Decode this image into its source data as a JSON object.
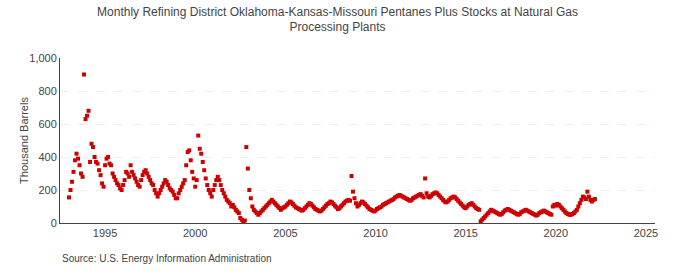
{
  "chart_data": {
    "type": "scatter",
    "title": "Monthly Refining District Oklahoma-Kansas-Missouri Pentanes Plus Stocks at Natural Gas\nProcessing Plants",
    "ylabel": "Thousand Barrels",
    "annotations": [
      "Source: U.S. Energy Information Administration"
    ],
    "color": "#cc0000",
    "marker": "square",
    "grid": true,
    "xlim": [
      1992.5,
      2025.5
    ],
    "ylim": [
      0,
      1000
    ],
    "xticks": [
      1995,
      2000,
      2005,
      2010,
      2015,
      2020,
      2025
    ],
    "yticks": [
      0,
      200,
      400,
      600,
      800,
      {
        "value": 1000,
        "label": "1,000"
      }
    ],
    "x": [
      1993.0,
      1993.083,
      1993.167,
      1993.25,
      1993.333,
      1993.417,
      1993.5,
      1993.583,
      1993.667,
      1993.75,
      1993.833,
      1993.917,
      1994.0,
      1994.083,
      1994.167,
      1994.25,
      1994.333,
      1994.417,
      1994.5,
      1994.583,
      1994.667,
      1994.75,
      1994.833,
      1994.917,
      1995.0,
      1995.083,
      1995.167,
      1995.25,
      1995.333,
      1995.417,
      1995.5,
      1995.583,
      1995.667,
      1995.75,
      1995.833,
      1995.917,
      1996.0,
      1996.083,
      1996.167,
      1996.25,
      1996.333,
      1996.417,
      1996.5,
      1996.583,
      1996.667,
      1996.75,
      1996.833,
      1996.917,
      1997.0,
      1997.083,
      1997.167,
      1997.25,
      1997.333,
      1997.417,
      1997.5,
      1997.583,
      1997.667,
      1997.75,
      1997.833,
      1997.917,
      1998.0,
      1998.083,
      1998.167,
      1998.25,
      1998.333,
      1998.417,
      1998.5,
      1998.583,
      1998.667,
      1998.75,
      1998.833,
      1998.917,
      1999.0,
      1999.083,
      1999.167,
      1999.25,
      1999.333,
      1999.417,
      1999.5,
      1999.583,
      1999.667,
      1999.75,
      1999.833,
      1999.917,
      2000.0,
      2000.083,
      2000.167,
      2000.25,
      2000.333,
      2000.417,
      2000.5,
      2000.583,
      2000.667,
      2000.75,
      2000.833,
      2000.917,
      2001.0,
      2001.083,
      2001.167,
      2001.25,
      2001.333,
      2001.417,
      2001.5,
      2001.583,
      2001.667,
      2001.75,
      2001.833,
      2001.917,
      2002.0,
      2002.083,
      2002.167,
      2002.25,
      2002.333,
      2002.417,
      2002.5,
      2002.583,
      2002.667,
      2002.75,
      2002.833,
      2002.917,
      2003.0,
      2003.083,
      2003.167,
      2003.25,
      2003.333,
      2003.417,
      2003.5,
      2003.583,
      2003.667,
      2003.75,
      2003.833,
      2003.917,
      2004.0,
      2004.083,
      2004.167,
      2004.25,
      2004.333,
      2004.417,
      2004.5,
      2004.583,
      2004.667,
      2004.75,
      2004.833,
      2004.917,
      2005.0,
      2005.083,
      2005.167,
      2005.25,
      2005.333,
      2005.417,
      2005.5,
      2005.583,
      2005.667,
      2005.75,
      2005.833,
      2005.917,
      2006.0,
      2006.083,
      2006.167,
      2006.25,
      2006.333,
      2006.417,
      2006.5,
      2006.583,
      2006.667,
      2006.75,
      2006.833,
      2006.917,
      2007.0,
      2007.083,
      2007.167,
      2007.25,
      2007.333,
      2007.417,
      2007.5,
      2007.583,
      2007.667,
      2007.75,
      2007.833,
      2007.917,
      2008.0,
      2008.083,
      2008.167,
      2008.25,
      2008.333,
      2008.417,
      2008.5,
      2008.583,
      2008.667,
      2008.75,
      2008.833,
      2008.917,
      2009.0,
      2009.083,
      2009.167,
      2009.25,
      2009.333,
      2009.417,
      2009.5,
      2009.583,
      2009.667,
      2009.75,
      2009.833,
      2009.917,
      2010.0,
      2010.083,
      2010.167,
      2010.25,
      2010.333,
      2010.417,
      2010.5,
      2010.583,
      2010.667,
      2010.75,
      2010.833,
      2010.917,
      2011.0,
      2011.083,
      2011.167,
      2011.25,
      2011.333,
      2011.417,
      2011.5,
      2011.583,
      2011.667,
      2011.75,
      2011.833,
      2011.917,
      2012.0,
      2012.083,
      2012.167,
      2012.25,
      2012.333,
      2012.417,
      2012.5,
      2012.583,
      2012.667,
      2012.75,
      2012.833,
      2012.917,
      2013.0,
      2013.083,
      2013.167,
      2013.25,
      2013.333,
      2013.417,
      2013.5,
      2013.583,
      2013.667,
      2013.75,
      2013.833,
      2013.917,
      2014.0,
      2014.083,
      2014.167,
      2014.25,
      2014.333,
      2014.417,
      2014.5,
      2014.583,
      2014.667,
      2014.75,
      2014.833,
      2014.917,
      2015.0,
      2015.083,
      2015.167,
      2015.25,
      2015.333,
      2015.417,
      2015.5,
      2015.583,
      2015.667,
      2015.75,
      2015.833,
      2015.917,
      2016.0,
      2016.083,
      2016.167,
      2016.25,
      2016.333,
      2016.417,
      2016.5,
      2016.583,
      2016.667,
      2016.75,
      2016.833,
      2016.917,
      2017.0,
      2017.083,
      2017.167,
      2017.25,
      2017.333,
      2017.417,
      2017.5,
      2017.583,
      2017.667,
      2017.75,
      2017.833,
      2017.917,
      2018.0,
      2018.083,
      2018.167,
      2018.25,
      2018.333,
      2018.417,
      2018.5,
      2018.583,
      2018.667,
      2018.75,
      2018.833,
      2018.917,
      2019.0,
      2019.083,
      2019.167,
      2019.25,
      2019.333,
      2019.417,
      2019.5,
      2019.583,
      2019.667,
      2019.75,
      2019.833,
      2019.917,
      2020.0,
      2020.083,
      2020.167,
      2020.25,
      2020.333,
      2020.417,
      2020.5,
      2020.583,
      2020.667,
      2020.75,
      2020.833,
      2020.917,
      2021.0,
      2021.083,
      2021.167,
      2021.25,
      2021.333,
      2021.417,
      2021.5,
      2021.583,
      2021.667,
      2021.75,
      2021.833,
      2021.917,
      2022.0,
      2022.083,
      2022.167
    ],
    "values": [
      155,
      200,
      250,
      310,
      380,
      420,
      390,
      350,
      300,
      280,
      900,
      630,
      650,
      680,
      370,
      480,
      460,
      400,
      370,
      360,
      320,
      290,
      240,
      220,
      350,
      390,
      400,
      360,
      350,
      300,
      280,
      260,
      240,
      230,
      210,
      200,
      230,
      260,
      310,
      300,
      280,
      350,
      310,
      290,
      270,
      250,
      230,
      220,
      260,
      290,
      310,
      320,
      300,
      280,
      260,
      240,
      230,
      200,
      180,
      160,
      180,
      200,
      220,
      240,
      260,
      250,
      230,
      210,
      200,
      190,
      170,
      150,
      150,
      180,
      200,
      220,
      240,
      260,
      350,
      430,
      440,
      380,
      310,
      270,
      220,
      260,
      530,
      450,
      420,
      370,
      320,
      270,
      230,
      200,
      180,
      160,
      200,
      230,
      260,
      280,
      260,
      230,
      200,
      180,
      160,
      140,
      130,
      120,
      100,
      110,
      95,
      80,
      70,
      60,
      30,
      20,
      10,
      15,
      460,
      330,
      200,
      150,
      100,
      80,
      70,
      60,
      50,
      60,
      70,
      80,
      90,
      100,
      110,
      120,
      130,
      140,
      130,
      120,
      110,
      100,
      90,
      80,
      90,
      95,
      100,
      110,
      120,
      130,
      125,
      115,
      105,
      95,
      90,
      85,
      80,
      75,
      80,
      90,
      100,
      110,
      120,
      115,
      105,
      95,
      85,
      80,
      75,
      70,
      75,
      85,
      95,
      105,
      115,
      120,
      130,
      125,
      115,
      105,
      95,
      85,
      90,
      100,
      110,
      120,
      130,
      135,
      140,
      135,
      285,
      190,
      150,
      120,
      100,
      110,
      120,
      130,
      125,
      115,
      105,
      95,
      85,
      80,
      75,
      70,
      75,
      85,
      90,
      95,
      100,
      110,
      115,
      120,
      125,
      130,
      135,
      140,
      145,
      155,
      160,
      165,
      170,
      165,
      160,
      155,
      150,
      145,
      140,
      135,
      140,
      150,
      155,
      160,
      165,
      170,
      175,
      165,
      155,
      270,
      180,
      160,
      155,
      165,
      175,
      180,
      185,
      180,
      170,
      160,
      150,
      140,
      130,
      125,
      130,
      140,
      150,
      155,
      160,
      155,
      145,
      135,
      125,
      115,
      105,
      95,
      90,
      100,
      110,
      115,
      120,
      110,
      100,
      90,
      85,
      80,
      10,
      20,
      30,
      40,
      50,
      60,
      70,
      80,
      75,
      70,
      65,
      60,
      55,
      50,
      55,
      65,
      75,
      80,
      85,
      80,
      75,
      70,
      65,
      60,
      55,
      50,
      55,
      65,
      70,
      75,
      80,
      75,
      70,
      65,
      60,
      55,
      50,
      45,
      50,
      60,
      65,
      70,
      75,
      70,
      65,
      60,
      55,
      50,
      100,
      110,
      105,
      115,
      110,
      100,
      90,
      80,
      70,
      60,
      55,
      50,
      50,
      55,
      60,
      70,
      80,
      100,
      120,
      140,
      160,
      155,
      145,
      190,
      160,
      140,
      130,
      140,
      145
    ]
  }
}
